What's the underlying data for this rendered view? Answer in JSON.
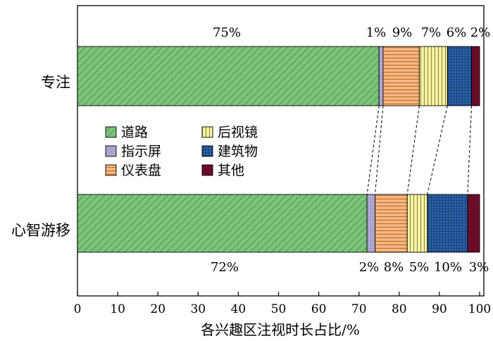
{
  "chart_data": {
    "type": "bar",
    "orientation": "horizontal",
    "stacked": true,
    "categories": [
      "专注",
      "心智游移"
    ],
    "series": [
      {
        "name": "道路",
        "values": [
          75,
          72
        ],
        "color": "#7cc47a",
        "pattern": "diagonal-hatch"
      },
      {
        "name": "指示屏",
        "values": [
          1,
          2
        ],
        "color": "#b6aed6",
        "pattern": "dots"
      },
      {
        "name": "仪表盘",
        "values": [
          9,
          8
        ],
        "color": "#f6b783",
        "pattern": "horizontal-lines"
      },
      {
        "name": "后视镜",
        "values": [
          7,
          5
        ],
        "color": "#f7f3a6",
        "pattern": "vertical-lines"
      },
      {
        "name": "建筑物",
        "values": [
          6,
          10
        ],
        "color": "#2a62a8",
        "pattern": "grid"
      },
      {
        "name": "其他",
        "values": [
          2,
          3
        ],
        "color": "#8c1438",
        "pattern": "crosshatch"
      }
    ],
    "value_labels": [
      [
        "75%",
        "1%",
        "9%",
        "7%",
        "6%",
        "2%"
      ],
      [
        "72%",
        "2%",
        "8%",
        "5%",
        "10%",
        "3%"
      ]
    ],
    "xlabel": "各兴趣区注视时长占比/%",
    "ylabel": "",
    "xlim": [
      0,
      100
    ],
    "xticks": [
      "0",
      "10",
      "20",
      "30",
      "40",
      "50",
      "60",
      "70",
      "80",
      "90",
      "100"
    ],
    "legend": {
      "placement": "center-left",
      "columns": 2,
      "order": [
        "道路",
        "指示屏",
        "仪表盘",
        "后视镜",
        "建筑物",
        "其他"
      ]
    },
    "connector_lines": "dashed lines linking segment boundaries between bars",
    "grid": false
  }
}
